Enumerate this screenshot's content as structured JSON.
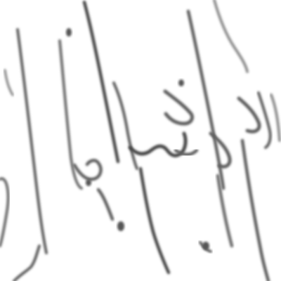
{
  "image": {
    "ink_color": "#5f5f5f",
    "background_color": "#ffffff",
    "content_type": "handwritten-arabic-script",
    "text": ""
  }
}
